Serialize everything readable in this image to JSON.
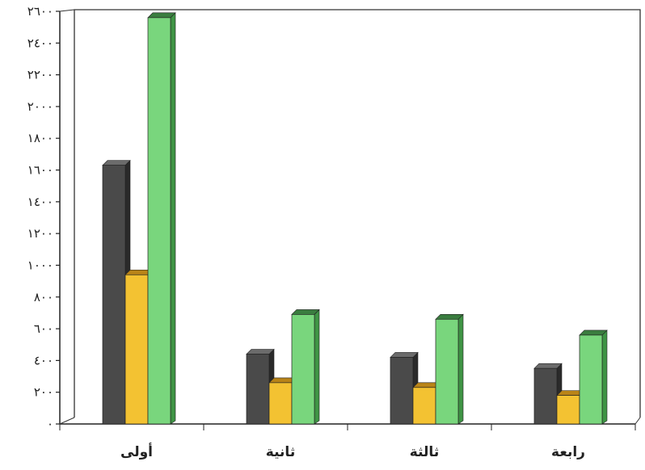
{
  "chart_data": {
    "type": "bar",
    "title": "",
    "xlabel": "",
    "ylabel": "",
    "categories": [
      "أولى",
      "ثانية",
      "ثالثة",
      "رابعة"
    ],
    "series": [
      {
        "values": [
          1630,
          440,
          420,
          350
        ]
      },
      {
        "values": [
          940,
          260,
          230,
          180
        ]
      },
      {
        "values": [
          2560,
          690,
          660,
          560
        ]
      }
    ],
    "ylim": [
      0,
      2600
    ],
    "yticks": [
      0,
      200,
      400,
      600,
      800,
      1000,
      1200,
      1400,
      1600,
      1800,
      2000,
      2200,
      2400,
      2600
    ],
    "ytick_labels": [
      "٠",
      "٢٠٠",
      "٤٠٠",
      "٦٠٠",
      "٨٠٠",
      "١٠٠٠",
      "١٢٠٠",
      "١٤٠٠",
      "١٦٠٠",
      "١٨٠٠",
      "٢٠٠٠",
      "٢٢٠٠",
      "٢٤٠٠",
      "٢٦٠٠"
    ],
    "grid": false,
    "legend": "none",
    "colors": [
      "#4a4a4a",
      "#f3c232",
      "#79d67d"
    ]
  }
}
